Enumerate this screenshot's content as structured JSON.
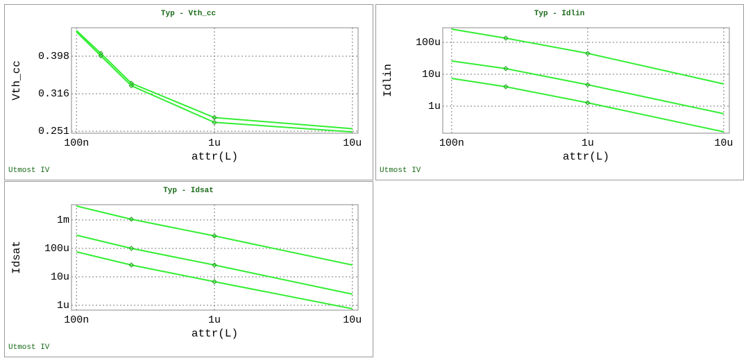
{
  "chart_data": [
    {
      "type": "line",
      "title": "Typ - Vth_cc",
      "xlabel": "attr(L)",
      "ylabel": "Vth_cc",
      "footer": "Utmost IV",
      "xlog": true,
      "ylog": true,
      "grid": true,
      "xlim": [
        9.2e-08,
        1.1e-05
      ],
      "xticks": [
        {
          "value": 1e-07,
          "label": "100n"
        },
        {
          "value": 1e-06,
          "label": "1u"
        },
        {
          "value": 1e-05,
          "label": "10u"
        }
      ],
      "ylim": [
        0.248,
        0.474
      ],
      "yticks": [
        0.251,
        0.316,
        0.398
      ],
      "x": [
        1e-07,
        1.5e-07,
        2.5e-07,
        1e-06,
        1e-05
      ],
      "series": [
        {
          "color": "#33ee33",
          "values": [
            0.466,
            0.405,
            0.337,
            0.273,
            0.255
          ]
        },
        {
          "color": "#33ee33",
          "values": [
            0.462,
            0.399,
            0.332,
            0.265,
            0.25
          ]
        }
      ]
    },
    {
      "type": "line",
      "title": "Typ - Idlin",
      "xlabel": "attr(L)",
      "ylabel": "Idlin",
      "footer": "Utmost IV",
      "xlog": true,
      "ylog": true,
      "grid": true,
      "xlim": [
        8.6e-08,
        1.1e-05
      ],
      "xticks": [
        {
          "value": 1e-07,
          "label": "100n"
        },
        {
          "value": 1e-06,
          "label": "1u"
        },
        {
          "value": 1e-05,
          "label": "10u"
        }
      ],
      "ylim": [
        1.42e-07,
        0.000286
      ],
      "yticks": [
        {
          "value": 1e-06,
          "label": "1u"
        },
        {
          "value": 1e-05,
          "label": "10u"
        },
        {
          "value": 0.0001,
          "label": "100u"
        }
      ],
      "x": [
        1e-07,
        2.5e-07,
        1e-06,
        1e-05
      ],
      "series": [
        {
          "color": "#33ee33",
          "values": [
            0.000259,
            0.000135,
            4.5e-05,
            4.97e-06
          ]
        },
        {
          "color": "#33ee33",
          "values": [
            2.6e-05,
            1.5e-05,
            4.7e-06,
            5.8e-07
          ]
        },
        {
          "color": "#33ee33",
          "values": [
            7.4e-06,
            4.06e-06,
            1.28e-06,
            1.57e-07
          ]
        }
      ]
    },
    {
      "type": "line",
      "title": "Typ - Idsat",
      "xlabel": "attr(L)",
      "ylabel": "Idsat",
      "footer": "Utmost IV",
      "xlog": true,
      "ylog": true,
      "grid": true,
      "xlim": [
        9.2e-08,
        1.1e-05
      ],
      "xticks": [
        {
          "value": 1e-07,
          "label": "100n"
        },
        {
          "value": 1e-06,
          "label": "1u"
        },
        {
          "value": 1e-05,
          "label": "10u"
        }
      ],
      "ylim": [
        6.75e-07,
        0.00344
      ],
      "yticks": [
        {
          "value": 1e-06,
          "label": "1u"
        },
        {
          "value": 1e-05,
          "label": "10u"
        },
        {
          "value": 0.0001,
          "label": "100u"
        },
        {
          "value": 0.001,
          "label": "1m"
        }
      ],
      "x": [
        1e-07,
        2.5e-07,
        1e-06,
        1e-05
      ],
      "series": [
        {
          "color": "#33ee33",
          "values": [
            0.00308,
            0.00106,
            0.000275,
            2.6e-05
          ]
        },
        {
          "color": "#33ee33",
          "values": [
            0.00029,
            0.0001,
            2.6e-05,
            2.46e-06
          ]
        },
        {
          "color": "#33ee33",
          "values": [
            7.55e-05,
            2.6e-05,
            6.75e-06,
            7.55e-07
          ]
        }
      ]
    }
  ]
}
